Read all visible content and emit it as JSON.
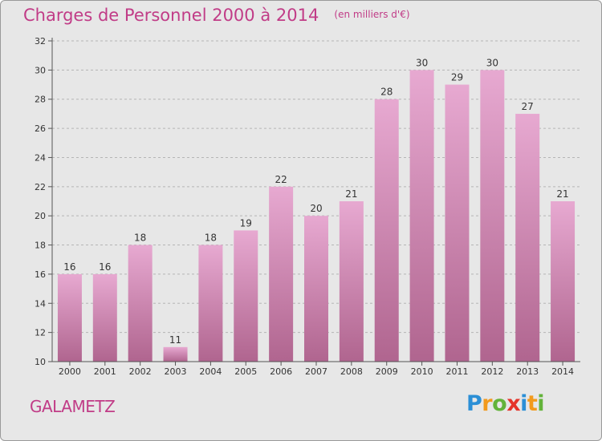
{
  "header": {
    "title": "Charges de Personnel 2000 à 2014",
    "subtitle": "(en milliers d'€)"
  },
  "footer": {
    "commune": "GALAMETZ",
    "brand_letters": [
      {
        "ch": "P",
        "color": "#2b8fd6"
      },
      {
        "ch": "r",
        "color": "#f29a1d"
      },
      {
        "ch": "o",
        "color": "#63b33a"
      },
      {
        "ch": "x",
        "color": "#e5342b"
      },
      {
        "ch": "i",
        "color": "#2b8fd6"
      },
      {
        "ch": "t",
        "color": "#f29a1d"
      },
      {
        "ch": "i",
        "color": "#63b33a"
      }
    ]
  },
  "chart_data": {
    "type": "bar",
    "title": "Charges de Personnel 2000 à 2014",
    "subtitle": "(en milliers d'€)",
    "categories": [
      "2000",
      "2001",
      "2002",
      "2003",
      "2004",
      "2005",
      "2006",
      "2007",
      "2008",
      "2009",
      "2010",
      "2011",
      "2012",
      "2013",
      "2014"
    ],
    "values": [
      16,
      16,
      18,
      11,
      18,
      19,
      22,
      20,
      21,
      28,
      30,
      29,
      30,
      27,
      21
    ],
    "ylim": [
      10,
      32
    ],
    "yticks": [
      10,
      12,
      14,
      16,
      18,
      20,
      22,
      24,
      26,
      28,
      30,
      32
    ],
    "grid": true,
    "bar_color_top": "#e7a9d1",
    "bar_color_bottom": "#b0658f",
    "axis_color": "#555555",
    "label_color": "#333333"
  }
}
